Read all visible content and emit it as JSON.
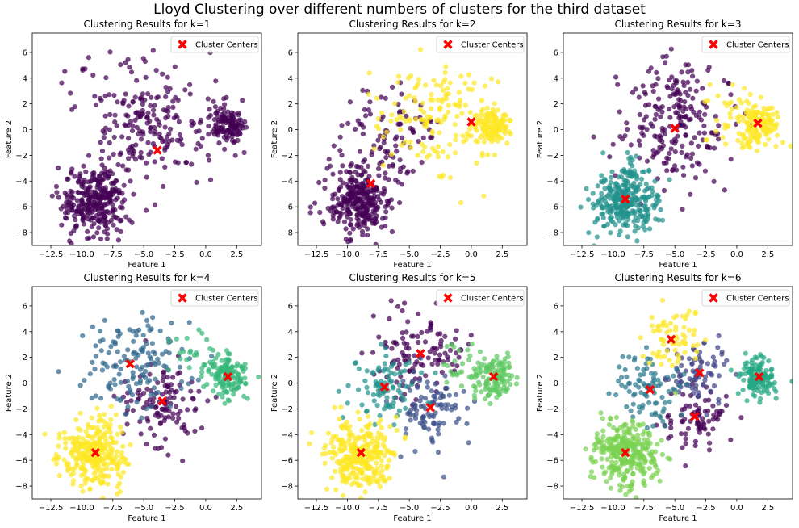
{
  "figure": {
    "title": "Lloyd Clustering over different numbers of clusters for the third dataset"
  },
  "chart_data": [
    {
      "type": "scatter",
      "title": "Clustering Results for k=1",
      "xlabel": "Feature 1",
      "ylabel": "Feature 2",
      "xlim": [
        -14,
        4.5
      ],
      "ylim": [
        -9,
        7.5
      ],
      "xticks": [
        -12.5,
        -10.0,
        -7.5,
        -5.0,
        -2.5,
        0.0,
        2.5
      ],
      "yticks": [
        -8,
        -6,
        -4,
        -2,
        0,
        2,
        4,
        6
      ],
      "legend": {
        "label": "Cluster Centers",
        "position": "top-right"
      },
      "clusters": [
        {
          "color": "#440154",
          "regions": [
            [
              -9.0,
              -5.5,
              1.3,
              300
            ],
            [
              -5.0,
              0.3,
              2.6,
              220
            ],
            [
              1.8,
              0.4,
              0.8,
              130
            ]
          ]
        }
      ],
      "centers": [
        [
          -3.9,
          -1.6
        ]
      ]
    },
    {
      "type": "scatter",
      "title": "Clustering Results for k=2",
      "xlabel": "Feature 1",
      "ylabel": "Feature 2",
      "xlim": [
        -14,
        4.5
      ],
      "ylim": [
        -9,
        7.5
      ],
      "xticks": [
        -12.5,
        -10.0,
        -7.5,
        -5.0,
        -2.5,
        0.0,
        2.5
      ],
      "yticks": [
        -8,
        -6,
        -4,
        -2,
        0,
        2,
        4,
        6
      ],
      "legend": {
        "label": "Cluster Centers",
        "position": "top-right"
      },
      "clusters": [
        {
          "color": "#440154",
          "regions": [
            [
              -9.0,
              -5.5,
              1.3,
              300
            ],
            [
              -6.5,
              -0.5,
              2.0,
              100
            ]
          ]
        },
        {
          "color": "#fde725",
          "regions": [
            [
              -3.0,
              1.0,
              2.2,
              150
            ],
            [
              1.8,
              0.4,
              0.8,
              130
            ]
          ]
        }
      ],
      "centers": [
        [
          -8.1,
          -4.2
        ],
        [
          0.0,
          0.6
        ]
      ]
    },
    {
      "type": "scatter",
      "title": "Clustering Results for k=3",
      "xlabel": "Feature 1",
      "ylabel": "Feature 2",
      "xlim": [
        -14,
        4.5
      ],
      "ylim": [
        -9,
        7.5
      ],
      "xticks": [
        -12.5,
        -10.0,
        -7.5,
        -5.0,
        -2.5,
        0.0,
        2.5
      ],
      "yticks": [
        -8,
        -6,
        -4,
        -2,
        0,
        2,
        4,
        6
      ],
      "legend": {
        "label": "Cluster Centers",
        "position": "top-right"
      },
      "clusters": [
        {
          "color": "#440154",
          "regions": [
            [
              -5.0,
              0.3,
              2.3,
              220
            ]
          ]
        },
        {
          "color": "#21918c",
          "regions": [
            [
              -9.0,
              -5.5,
              1.3,
              300
            ]
          ]
        },
        {
          "color": "#fde725",
          "regions": [
            [
              1.8,
              0.4,
              0.8,
              130
            ],
            [
              -0.5,
              1.0,
              1.3,
              40
            ]
          ]
        }
      ],
      "centers": [
        [
          -5.0,
          0.1
        ],
        [
          -9.0,
          -5.4
        ],
        [
          1.7,
          0.5
        ]
      ]
    },
    {
      "type": "scatter",
      "title": "Clustering Results for k=4",
      "xlabel": "Feature 1",
      "ylabel": "Feature 2",
      "xlim": [
        -14,
        4.5
      ],
      "ylim": [
        -9,
        7.5
      ],
      "xticks": [
        -12.5,
        -10.0,
        -7.5,
        -5.0,
        -2.5,
        0.0,
        2.5
      ],
      "yticks": [
        -8,
        -6,
        -4,
        -2,
        0,
        2,
        4,
        6
      ],
      "legend": {
        "label": "Cluster Centers",
        "position": "top-right"
      },
      "clusters": [
        {
          "color": "#440154",
          "regions": [
            [
              -3.5,
              -1.5,
              1.6,
              120
            ]
          ]
        },
        {
          "color": "#31688e",
          "regions": [
            [
              -6.0,
              1.5,
              2.0,
              140
            ]
          ]
        },
        {
          "color": "#35b779",
          "regions": [
            [
              1.8,
              0.4,
              0.8,
              130
            ],
            [
              -0.8,
              2.0,
              1.0,
              25
            ]
          ]
        },
        {
          "color": "#fde725",
          "regions": [
            [
              -9.0,
              -5.5,
              1.3,
              300
            ]
          ]
        }
      ],
      "centers": [
        [
          -3.5,
          -1.4
        ],
        [
          -6.1,
          1.5
        ],
        [
          1.8,
          0.5
        ],
        [
          -8.9,
          -5.4
        ]
      ]
    },
    {
      "type": "scatter",
      "title": "Clustering Results for k=5",
      "xlabel": "Feature 1",
      "ylabel": "Feature 2",
      "xlim": [
        -14,
        4.5
      ],
      "ylim": [
        -9,
        7.5
      ],
      "xticks": [
        -12.5,
        -10.0,
        -7.5,
        -5.0,
        -2.5,
        0.0,
        2.5
      ],
      "yticks": [
        -8,
        -6,
        -4,
        -2,
        0,
        2,
        4,
        6
      ],
      "legend": {
        "label": "Cluster Centers",
        "position": "top-right"
      },
      "clusters": [
        {
          "color": "#440154",
          "regions": [
            [
              -4.0,
              2.5,
              1.8,
              120
            ]
          ]
        },
        {
          "color": "#3b528b",
          "regions": [
            [
              -3.2,
              -2.0,
              1.4,
              100
            ]
          ]
        },
        {
          "color": "#21918c",
          "regions": [
            [
              -7.0,
              -0.3,
              1.4,
              90
            ]
          ]
        },
        {
          "color": "#5ec962",
          "regions": [
            [
              1.8,
              0.4,
              0.8,
              130
            ],
            [
              -0.8,
              1.5,
              1.0,
              25
            ]
          ]
        },
        {
          "color": "#fde725",
          "regions": [
            [
              -9.0,
              -5.5,
              1.3,
              300
            ]
          ]
        }
      ],
      "centers": [
        [
          -4.1,
          2.3
        ],
        [
          -3.3,
          -1.9
        ],
        [
          -7.0,
          -0.3
        ],
        [
          1.8,
          0.5
        ],
        [
          -8.9,
          -5.4
        ]
      ]
    },
    {
      "type": "scatter",
      "title": "Clustering Results for k=6",
      "xlabel": "Feature 1",
      "ylabel": "Feature 2",
      "xlim": [
        -14,
        4.5
      ],
      "ylim": [
        -9,
        7.5
      ],
      "xticks": [
        -12.5,
        -10.0,
        -7.5,
        -5.0,
        -2.5,
        0.0,
        2.5
      ],
      "yticks": [
        -8,
        -6,
        -4,
        -2,
        0,
        2,
        4,
        6
      ],
      "legend": {
        "label": "Cluster Centers",
        "position": "top-right"
      },
      "clusters": [
        {
          "color": "#440154",
          "regions": [
            [
              -3.4,
              -2.5,
              1.3,
              80
            ]
          ]
        },
        {
          "color": "#414487",
          "regions": [
            [
              -3.0,
              0.8,
              1.2,
              80
            ]
          ]
        },
        {
          "color": "#2a788e",
          "regions": [
            [
              -7.0,
              -0.5,
              1.4,
              90
            ]
          ]
        },
        {
          "color": "#22a884",
          "regions": [
            [
              1.8,
              0.4,
              0.8,
              130
            ]
          ]
        },
        {
          "color": "#7ad151",
          "regions": [
            [
              -9.0,
              -5.5,
              1.3,
              300
            ]
          ]
        },
        {
          "color": "#fde725",
          "regions": [
            [
              -5.2,
              3.5,
              1.3,
              70
            ]
          ]
        }
      ],
      "centers": [
        [
          -3.4,
          -2.6
        ],
        [
          -3.0,
          0.8
        ],
        [
          -7.0,
          -0.5
        ],
        [
          1.8,
          0.5
        ],
        [
          -9.0,
          -5.4
        ],
        [
          -5.3,
          3.4
        ]
      ]
    }
  ]
}
